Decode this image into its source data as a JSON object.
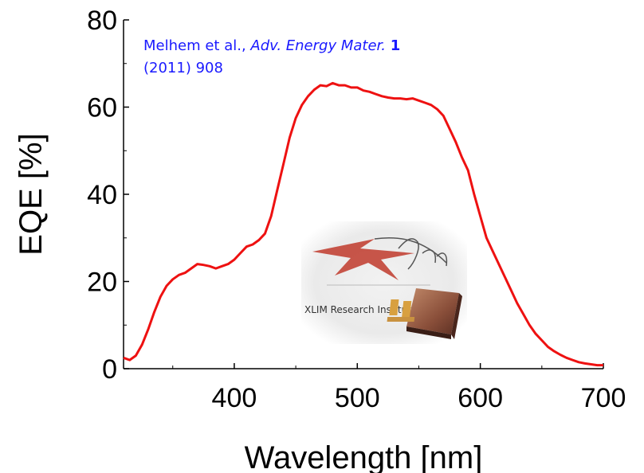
{
  "citation": {
    "authors": "Melhem et al.,",
    "journal": "Adv. Energy Mater.",
    "volume": "1",
    "year_pages": "(2011) 908"
  },
  "photo": {
    "label": "XLIM Research Institute",
    "logo_text": "Xlim"
  },
  "colors": {
    "curve": "#ee1111",
    "citation": "#1a1aff"
  },
  "chart_data": {
    "type": "line",
    "xlabel": "Wavelength [nm]",
    "ylabel": "EQE [%]",
    "xlim": [
      310,
      700
    ],
    "ylim": [
      0,
      80
    ],
    "xticks": [
      400,
      500,
      600,
      700
    ],
    "yticks": [
      0,
      20,
      40,
      60,
      80
    ],
    "grid": false,
    "series": [
      {
        "x": [
          310,
          315,
          320,
          325,
          330,
          335,
          340,
          345,
          350,
          355,
          360,
          365,
          370,
          375,
          380,
          385,
          390,
          395,
          400,
          405,
          410,
          415,
          420,
          425,
          430,
          435,
          440,
          445,
          450,
          455,
          460,
          465,
          470,
          475,
          480,
          485,
          490,
          495,
          500,
          505,
          510,
          515,
          520,
          525,
          530,
          535,
          540,
          545,
          550,
          555,
          560,
          565,
          570,
          575,
          580,
          585,
          590,
          595,
          600,
          605,
          610,
          615,
          620,
          625,
          630,
          635,
          640,
          645,
          650,
          655,
          660,
          665,
          670,
          675,
          680,
          685,
          690,
          695,
          700
        ],
        "y": [
          2.5,
          2.0,
          3.0,
          5.5,
          9.0,
          13.0,
          16.5,
          19.0,
          20.5,
          21.5,
          22.0,
          23.0,
          24.0,
          23.8,
          23.5,
          23.0,
          23.5,
          24.0,
          25.0,
          26.5,
          28.0,
          28.5,
          29.5,
          31.0,
          35.0,
          41.0,
          47.0,
          53.0,
          57.5,
          60.5,
          62.5,
          64.0,
          65.0,
          64.8,
          65.5,
          65.0,
          65.0,
          64.5,
          64.5,
          63.8,
          63.5,
          63.0,
          62.5,
          62.2,
          62.0,
          62.0,
          61.8,
          62.0,
          61.5,
          61.0,
          60.5,
          59.5,
          58.0,
          55.0,
          52.0,
          48.5,
          45.5,
          40.0,
          35.0,
          30.0,
          27.0,
          24.0,
          21.0,
          18.0,
          15.0,
          12.5,
          10.0,
          8.0,
          6.5,
          5.0,
          4.0,
          3.2,
          2.5,
          2.0,
          1.5,
          1.2,
          1.0,
          0.8,
          0.8
        ]
      }
    ]
  }
}
